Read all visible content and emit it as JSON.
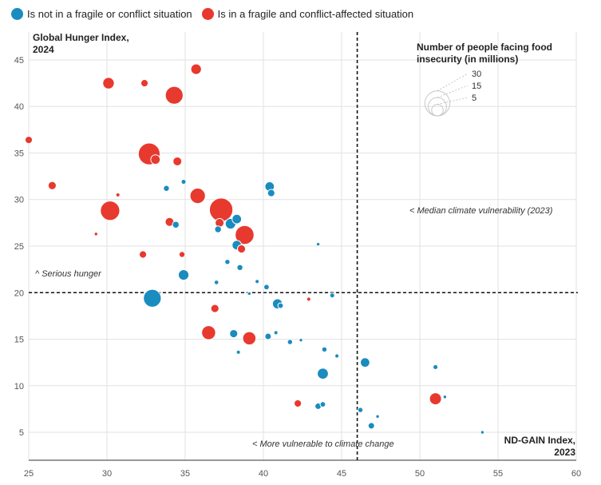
{
  "legend": {
    "series": [
      {
        "name": "Is not in a fragile or conflict situation",
        "color": "#1a8cbf"
      },
      {
        "name": "Is in a fragile and conflict-affected situation",
        "color": "#e8392e"
      }
    ]
  },
  "size_legend": {
    "title": "Number of people facing food\ninsecurity (in millions)",
    "values": [
      30,
      15,
      5
    ]
  },
  "annotations": {
    "median": "< Median climate vulnerability (2023)",
    "serious": "^ Serious hunger",
    "vulnerable": "< More vulnerable to climate change"
  },
  "chart_data": {
    "type": "scatter",
    "xlabel": "ND-GAIN Index,\n2023",
    "ylabel": "Global Hunger Index,\n2024",
    "xlim": [
      25,
      60
    ],
    "ylim": [
      2,
      48
    ],
    "xticks": [
      25,
      30,
      35,
      40,
      45,
      50,
      55,
      60
    ],
    "yticks": [
      5,
      10,
      15,
      20,
      25,
      30,
      35,
      40,
      45
    ],
    "grid": true,
    "legend_position": "top-left",
    "reference_lines": {
      "x_median": 46,
      "y_serious": 20
    },
    "series": [
      {
        "name": "Is not in a fragile or conflict situation",
        "color": "#1a8cbf",
        "points": [
          {
            "x": 32.9,
            "y": 19.4,
            "size": 14
          },
          {
            "x": 34.9,
            "y": 21.9,
            "size": 4
          },
          {
            "x": 33.8,
            "y": 31.2,
            "size": 0.8
          },
          {
            "x": 34.4,
            "y": 27.3,
            "size": 1.2
          },
          {
            "x": 34.9,
            "y": 31.9,
            "size": 0.4
          },
          {
            "x": 37.1,
            "y": 26.8,
            "size": 1.2
          },
          {
            "x": 37.7,
            "y": 23.3,
            "size": 0.5
          },
          {
            "x": 37.9,
            "y": 27.4,
            "size": 4
          },
          {
            "x": 38.3,
            "y": 25.1,
            "size": 3
          },
          {
            "x": 38.3,
            "y": 27.9,
            "size": 3
          },
          {
            "x": 38.5,
            "y": 22.7,
            "size": 0.8
          },
          {
            "x": 38.1,
            "y": 15.6,
            "size": 2
          },
          {
            "x": 38.4,
            "y": 13.6,
            "size": 0.2
          },
          {
            "x": 37.0,
            "y": 21.1,
            "size": 0.3
          },
          {
            "x": 39.1,
            "y": 19.9,
            "size": 0.1
          },
          {
            "x": 39.6,
            "y": 21.2,
            "size": 0.2
          },
          {
            "x": 40.2,
            "y": 20.6,
            "size": 0.6
          },
          {
            "x": 40.4,
            "y": 31.4,
            "size": 3
          },
          {
            "x": 40.5,
            "y": 30.7,
            "size": 1.5
          },
          {
            "x": 40.9,
            "y": 18.8,
            "size": 3.5
          },
          {
            "x": 41.1,
            "y": 18.6,
            "size": 0.6
          },
          {
            "x": 40.3,
            "y": 15.3,
            "size": 1
          },
          {
            "x": 40.8,
            "y": 15.7,
            "size": 0.2
          },
          {
            "x": 41.7,
            "y": 14.7,
            "size": 0.5
          },
          {
            "x": 42.4,
            "y": 14.9,
            "size": 0.1
          },
          {
            "x": 43.5,
            "y": 25.2,
            "size": 0.1
          },
          {
            "x": 43.8,
            "y": 11.3,
            "size": 4.5
          },
          {
            "x": 43.9,
            "y": 13.9,
            "size": 0.5
          },
          {
            "x": 44.4,
            "y": 19.7,
            "size": 0.4
          },
          {
            "x": 44.7,
            "y": 13.2,
            "size": 0.2
          },
          {
            "x": 43.5,
            "y": 7.8,
            "size": 1
          },
          {
            "x": 43.8,
            "y": 8.0,
            "size": 0.6
          },
          {
            "x": 46.5,
            "y": 12.5,
            "size": 3
          },
          {
            "x": 46.2,
            "y": 7.4,
            "size": 0.5
          },
          {
            "x": 46.9,
            "y": 5.7,
            "size": 1
          },
          {
            "x": 47.3,
            "y": 6.7,
            "size": 0.1
          },
          {
            "x": 51.0,
            "y": 12.0,
            "size": 0.4
          },
          {
            "x": 51.6,
            "y": 8.8,
            "size": 0.1
          },
          {
            "x": 54.0,
            "y": 5.0,
            "size": 0.1
          }
        ]
      },
      {
        "name": "Is in a fragile and conflict-affected situation",
        "color": "#e8392e",
        "points": [
          {
            "x": 25.0,
            "y": 36.4,
            "size": 1.5
          },
          {
            "x": 26.5,
            "y": 31.5,
            "size": 2
          },
          {
            "x": 30.1,
            "y": 42.5,
            "size": 5
          },
          {
            "x": 30.2,
            "y": 28.8,
            "size": 17
          },
          {
            "x": 29.3,
            "y": 26.3,
            "size": 0.1
          },
          {
            "x": 30.7,
            "y": 30.5,
            "size": 0.2
          },
          {
            "x": 32.4,
            "y": 42.5,
            "size": 1.5
          },
          {
            "x": 32.7,
            "y": 34.9,
            "size": 22
          },
          {
            "x": 33.1,
            "y": 34.3,
            "size": 3
          },
          {
            "x": 32.3,
            "y": 24.1,
            "size": 1.5
          },
          {
            "x": 34.3,
            "y": 41.2,
            "size": 14
          },
          {
            "x": 34.5,
            "y": 34.1,
            "size": 2.5
          },
          {
            "x": 34.0,
            "y": 27.6,
            "size": 2.5
          },
          {
            "x": 34.8,
            "y": 24.1,
            "size": 0.8
          },
          {
            "x": 35.7,
            "y": 44.0,
            "size": 4
          },
          {
            "x": 35.8,
            "y": 30.4,
            "size": 10
          },
          {
            "x": 37.3,
            "y": 28.9,
            "size": 26
          },
          {
            "x": 37.2,
            "y": 27.5,
            "size": 2.5
          },
          {
            "x": 36.9,
            "y": 18.3,
            "size": 2
          },
          {
            "x": 36.5,
            "y": 15.7,
            "size": 8
          },
          {
            "x": 38.8,
            "y": 26.2,
            "size": 16
          },
          {
            "x": 38.6,
            "y": 24.7,
            "size": 2
          },
          {
            "x": 39.1,
            "y": 15.1,
            "size": 7
          },
          {
            "x": 42.9,
            "y": 19.3,
            "size": 0.2
          },
          {
            "x": 42.2,
            "y": 8.1,
            "size": 1.5
          },
          {
            "x": 51.0,
            "y": 8.6,
            "size": 5.5
          }
        ]
      }
    ]
  }
}
